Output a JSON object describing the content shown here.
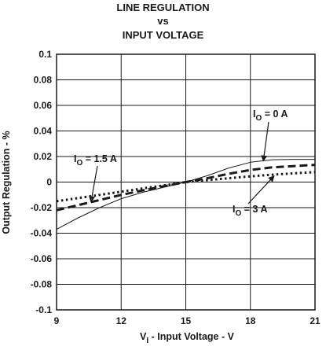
{
  "chart_data": {
    "type": "line",
    "title_lines": [
      "LINE REGULATION",
      "vs",
      "INPUT VOLTAGE"
    ],
    "xlabel": "V_I - Input Voltage - V",
    "ylabel": "Output Regulation - %",
    "xlim": [
      9,
      21
    ],
    "ylim": [
      -0.1,
      0.1
    ],
    "xticks": [
      9,
      12,
      15,
      18,
      21
    ],
    "yticks": [
      0.1,
      0.08,
      0.06,
      0.04,
      0.02,
      0,
      -0.02,
      -0.04,
      -0.06,
      -0.08,
      -0.1
    ],
    "ytick_labels": [
      "0.1",
      "0.08",
      "0.06",
      "0.04",
      "0.02",
      "0",
      "-0.02",
      "-0.04",
      "-0.06",
      "-0.08",
      "-0.1"
    ],
    "grid": true,
    "series": [
      {
        "name": "I_O = 0 A",
        "style": "solid-thin",
        "x": [
          9,
          10,
          11,
          12,
          13,
          14,
          15,
          16,
          17,
          18,
          19,
          20,
          21
        ],
        "y": [
          -0.037,
          -0.028,
          -0.02,
          -0.013,
          -0.008,
          -0.004,
          0.0,
          0.005,
          0.011,
          0.0155,
          0.0175,
          0.0178,
          0.0178
        ]
      },
      {
        "name": "I_O = 1.5 A",
        "style": "dashed",
        "x": [
          9,
          10,
          11,
          12,
          13,
          14,
          15,
          16,
          17,
          18,
          19,
          20,
          21
        ],
        "y": [
          -0.022,
          -0.018,
          -0.014,
          -0.01,
          -0.0065,
          -0.0032,
          0.0,
          0.003,
          0.0065,
          0.0095,
          0.0115,
          0.0125,
          0.0135
        ]
      },
      {
        "name": "I_O = 3 A",
        "style": "dotted",
        "x": [
          9,
          10,
          11,
          12,
          13,
          14,
          15,
          16,
          17,
          18,
          19,
          20,
          21
        ],
        "y": [
          -0.015,
          -0.0125,
          -0.01,
          -0.0075,
          -0.005,
          -0.0025,
          0.0,
          0.0015,
          0.003,
          0.0045,
          0.0058,
          0.0068,
          0.0078
        ]
      }
    ],
    "annotations": [
      {
        "sub_main": "I",
        "sub": "O",
        "rest": " = 0 A",
        "series": "I_O = 0 A"
      },
      {
        "sub_main": "I",
        "sub": "O",
        "rest": " = 1.5 A",
        "series": "I_O = 1.5 A"
      },
      {
        "sub_main": "I",
        "sub": "O",
        "rest": " = 3 A",
        "series": "I_O = 3 A"
      }
    ],
    "xlabel_parts": {
      "main": "V",
      "sub": "I",
      "rest": " - Input Voltage - V"
    }
  },
  "colors": {
    "axis": "#1a1a1a",
    "grid": "#1a1a1a",
    "series": "#1a1a1a"
  }
}
